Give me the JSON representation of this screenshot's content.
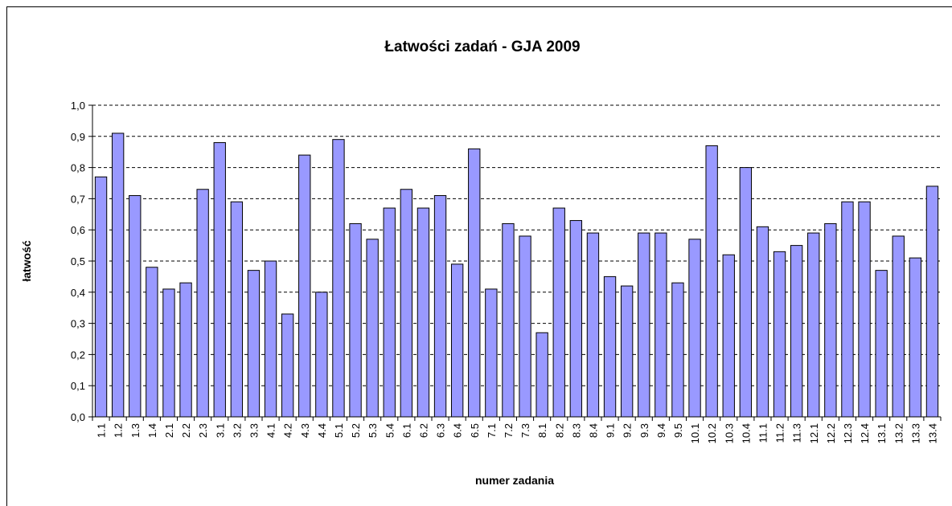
{
  "chart_data": {
    "type": "bar",
    "title": "Łatwości zadań - GJA 2009",
    "x_label": "numer zadania",
    "y_label": "łatwość",
    "categories": [
      "1.1",
      "1.2",
      "1.3",
      "1.4",
      "2.1",
      "2.2",
      "2.3",
      "3.1",
      "3.2",
      "3.3",
      "4.1",
      "4.2",
      "4.3",
      "4.4",
      "5.1",
      "5.2",
      "5.3",
      "5.4",
      "6.1",
      "6.2",
      "6.3",
      "6.4",
      "6.5",
      "7.1",
      "7.2",
      "7.3",
      "8.1",
      "8.2",
      "8.3",
      "8.4",
      "9.1",
      "9.2",
      "9.3",
      "9.4",
      "9.5",
      "10.1",
      "10.2",
      "10.3",
      "10.4",
      "11.1",
      "11.2",
      "11.3",
      "12.1",
      "12.2",
      "12.3",
      "12.4",
      "13.1",
      "13.2",
      "13.3",
      "13.4"
    ],
    "values": [
      0.77,
      0.91,
      0.71,
      0.48,
      0.41,
      0.43,
      0.73,
      0.88,
      0.69,
      0.47,
      0.5,
      0.33,
      0.84,
      0.4,
      0.89,
      0.62,
      0.57,
      0.67,
      0.73,
      0.67,
      0.71,
      0.49,
      0.86,
      0.41,
      0.62,
      0.58,
      0.27,
      0.67,
      0.63,
      0.59,
      0.45,
      0.42,
      0.59,
      0.59,
      0.43,
      0.57,
      0.87,
      0.52,
      0.8,
      0.61,
      0.53,
      0.55,
      0.59,
      0.62,
      0.69,
      0.69,
      0.47,
      0.58,
      0.51,
      0.74
    ],
    "color": "#9999ff",
    "ylim": [
      0,
      1.0
    ],
    "yticks": [
      {
        "value": 0,
        "label": "0,0"
      },
      {
        "value": 0.1,
        "label": "0,1"
      },
      {
        "value": 0.2,
        "label": "0,2"
      },
      {
        "value": 0.3,
        "label": "0,3"
      },
      {
        "value": 0.4,
        "label": "0,4"
      },
      {
        "value": 0.5,
        "label": "0,5"
      },
      {
        "value": 0.6,
        "label": "0,6"
      },
      {
        "value": 0.7,
        "label": "0,7"
      },
      {
        "value": 0.8,
        "label": "0,8"
      },
      {
        "value": 0.9,
        "label": "0,9"
      },
      {
        "value": 1.0,
        "label": "1,0"
      }
    ],
    "grid": true
  }
}
